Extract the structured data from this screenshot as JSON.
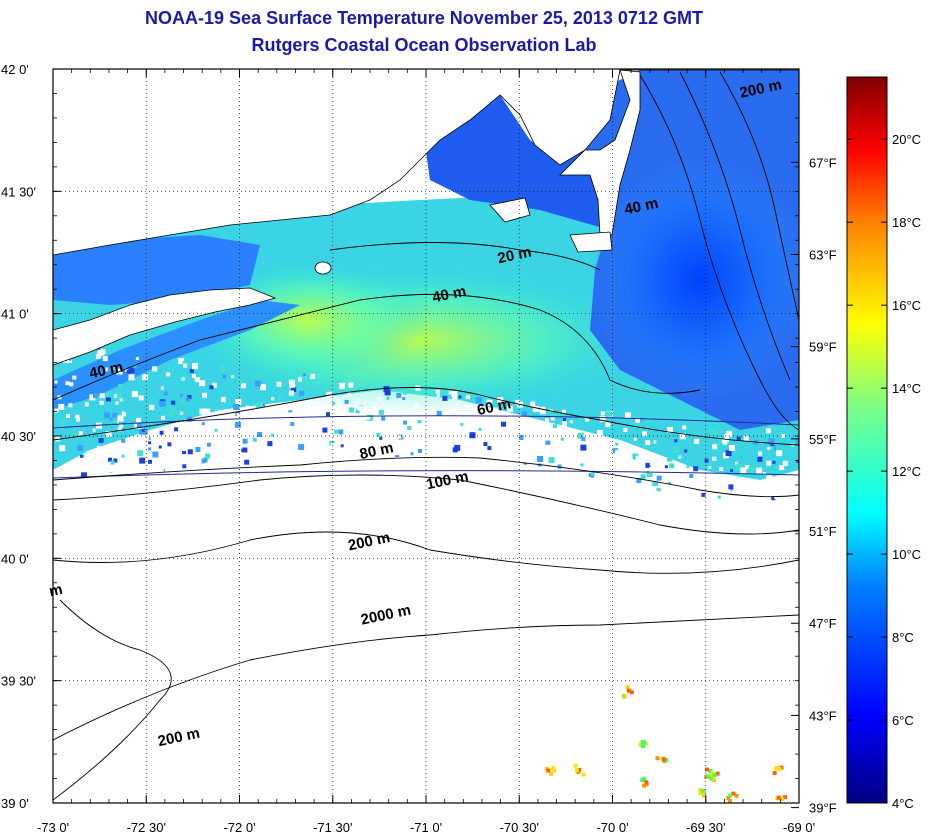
{
  "title": "NOAA-19 Sea Surface Temperature November 25, 2013 0712 GMT",
  "subtitle": "Rutgers Coastal Ocean Observation Lab",
  "map": {
    "lon_range": [
      -73.0,
      -69.0
    ],
    "lat_range": [
      39.0,
      42.0
    ],
    "grid": true,
    "lon_ticks": [
      -73.0,
      -72.5,
      -72.0,
      -71.5,
      -71.0,
      -70.5,
      -70.0,
      -69.5,
      -69.0
    ],
    "lon_tick_labels": [
      "-73 0'",
      "-72 30'",
      "-72 0'",
      "-71 30'",
      "-71 0'",
      "-70 30'",
      "-70 0'",
      "-69 30'",
      "-69 0'"
    ],
    "lat_ticks": [
      39.0,
      39.5,
      40.0,
      40.5,
      41.0,
      41.5,
      42.0
    ],
    "lat_tick_labels": [
      "39 0'",
      "39 30'",
      "40 0'",
      "40 30'",
      "41 0'",
      "41 30'",
      "42 0'"
    ],
    "fahrenheit_ticks": [
      39,
      43,
      47,
      51,
      55,
      59,
      63,
      67
    ],
    "fahrenheit_tick_labels": [
      "39°F",
      "43°F",
      "47°F",
      "51°F",
      "55°F",
      "59°F",
      "63°F",
      "67°F"
    ],
    "colors": {
      "land": "#ffffff",
      "cloud": "#ffffff",
      "contour": "#000000",
      "track_line": "#1c2a99"
    }
  },
  "contour_labels": [
    {
      "text": "200 m",
      "lon": -69.2,
      "lat": 41.9
    },
    {
      "text": "40 m",
      "lon": -69.84,
      "lat": 41.42
    },
    {
      "text": "20 m",
      "lon": -70.52,
      "lat": 41.22
    },
    {
      "text": "40 m",
      "lon": -70.87,
      "lat": 41.06
    },
    {
      "text": "40 m",
      "lon": -72.71,
      "lat": 40.75
    },
    {
      "text": "60 m",
      "lon": -70.63,
      "lat": 40.6
    },
    {
      "text": "80 m",
      "lon": -71.26,
      "lat": 40.42
    },
    {
      "text": "100 m",
      "lon": -70.88,
      "lat": 40.3
    },
    {
      "text": "200 m",
      "lon": -71.3,
      "lat": 40.05
    },
    {
      "text": "2000 m",
      "lon": -71.21,
      "lat": 39.75
    },
    {
      "text": "200 m",
      "lon": -72.32,
      "lat": 39.25
    },
    {
      "text": "m",
      "lon": -72.98,
      "lat": 39.85
    }
  ],
  "colorbar": {
    "min_c": 4,
    "max_c": 21.5,
    "tick_values_c": [
      4,
      6,
      8,
      10,
      12,
      14,
      16,
      18,
      20
    ],
    "tick_labels": [
      "4°C",
      "6°C",
      "8°C",
      "10°C",
      "12°C",
      "14°C",
      "16°C",
      "18°C",
      "20°C"
    ],
    "stops": [
      "#000080",
      "#0000ff",
      "#0080ff",
      "#00ffff",
      "#80ff80",
      "#ffff00",
      "#ff8000",
      "#ff0000",
      "#800000"
    ]
  }
}
